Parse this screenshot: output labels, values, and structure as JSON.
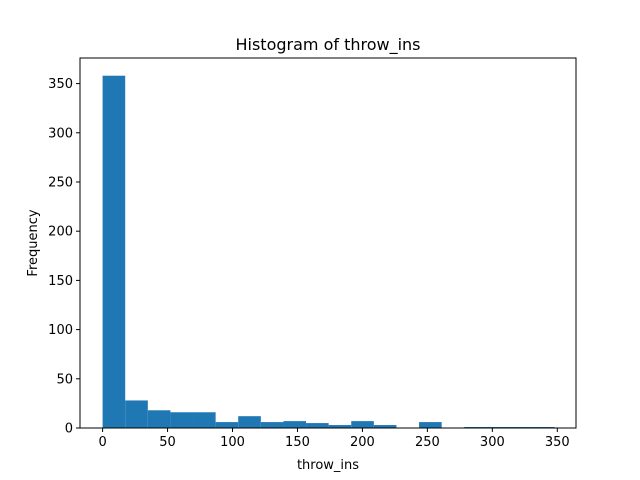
{
  "chart_data": {
    "type": "bar",
    "title": "Histogram of throw_ins",
    "xlabel": "throw_ins",
    "ylabel": "Frequency",
    "xlim": [
      -17.4,
      364.4
    ],
    "ylim": [
      0,
      376
    ],
    "xticks": [
      0,
      50,
      100,
      150,
      200,
      250,
      300,
      350
    ],
    "yticks": [
      0,
      50,
      100,
      150,
      200,
      250,
      300,
      350
    ],
    "bin_edges": [
      0,
      17.4,
      34.8,
      52.2,
      69.6,
      87.0,
      104.4,
      121.8,
      139.2,
      156.6,
      174.0,
      191.4,
      208.8,
      226.2,
      243.6,
      261.0,
      278.4,
      295.8,
      313.2,
      330.6,
      348.0
    ],
    "values": [
      358,
      28,
      18,
      16,
      16,
      6,
      12,
      6,
      7,
      5,
      3,
      7,
      3,
      0,
      6,
      0,
      1,
      1,
      1,
      1
    ],
    "bar_color": "#1f77b4",
    "grid": false,
    "legend": "none"
  }
}
